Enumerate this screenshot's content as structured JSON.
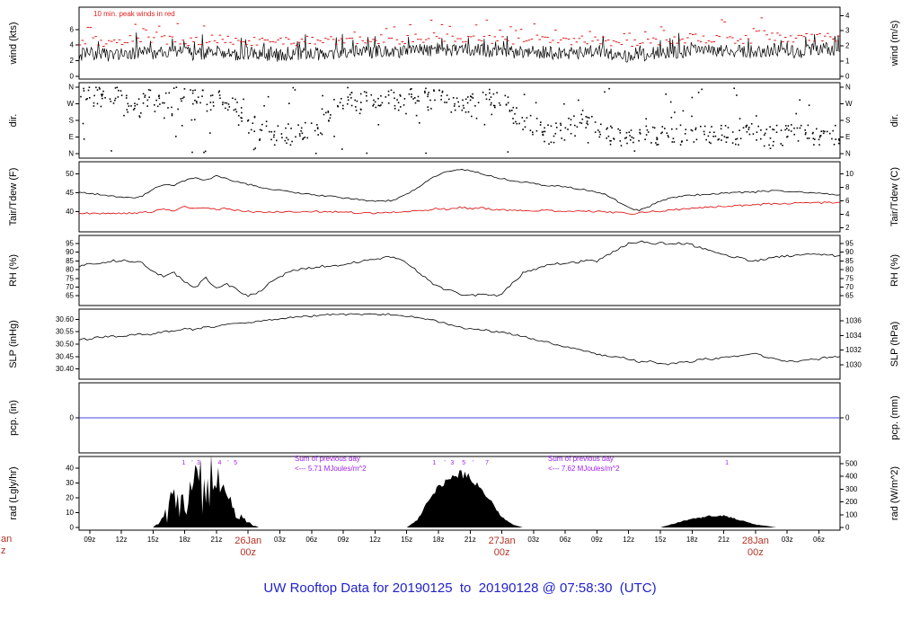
{
  "chart_data": {
    "type": "line",
    "title": "UW Rooftop Data for 20190125  to  20190128 @ 07:58:30  (UTC)",
    "layout": "7 stacked meteogram panels sharing one 72-hour time axis, grid off, ticks outside",
    "colors": {
      "trace_black": "#000000",
      "trace_red": "#dd0000",
      "annotation_red": "#e02020",
      "date_red": "#b23327",
      "purple": "#a020f0",
      "title_blue": "#2222cc",
      "pcp_blue": "#4444dd"
    },
    "x_axis": {
      "hours_total": 72,
      "ticks": [
        {
          "t": 1,
          "l": "09z"
        },
        {
          "t": 4,
          "l": "12z"
        },
        {
          "t": 7,
          "l": "15z"
        },
        {
          "t": 10,
          "l": "18z"
        },
        {
          "t": 13,
          "l": "21z"
        },
        {
          "t": 16,
          "l": ""
        },
        {
          "t": 19,
          "l": "03z"
        },
        {
          "t": 22,
          "l": "06z"
        },
        {
          "t": 25,
          "l": "09z"
        },
        {
          "t": 28,
          "l": "12z"
        },
        {
          "t": 31,
          "l": "15z"
        },
        {
          "t": 34,
          "l": "18z"
        },
        {
          "t": 37,
          "l": "21z"
        },
        {
          "t": 40,
          "l": ""
        },
        {
          "t": 43,
          "l": "03z"
        },
        {
          "t": 46,
          "l": "06z"
        },
        {
          "t": 49,
          "l": "09z"
        },
        {
          "t": 52,
          "l": "12z"
        },
        {
          "t": 55,
          "l": "15z"
        },
        {
          "t": 58,
          "l": "18z"
        },
        {
          "t": 61,
          "l": "21z"
        },
        {
          "t": 64,
          "l": ""
        },
        {
          "t": 67,
          "l": "03z"
        },
        {
          "t": 70,
          "l": "06z"
        }
      ],
      "date_labels": [
        {
          "t": 16,
          "line1": "26Jan",
          "line2": "00z"
        },
        {
          "t": 40,
          "line1": "27Jan",
          "line2": "00z"
        },
        {
          "t": 64,
          "line1": "28Jan",
          "line2": "00z"
        }
      ]
    },
    "panels": [
      {
        "id": "wind",
        "ylabel_left": "wind (kts)",
        "ylabel_right": "wind (m/s)",
        "ylim": [
          0,
          8.5
        ],
        "ticks_left": [
          {
            "v": 0,
            "l": "0"
          },
          {
            "v": 2,
            "l": "2"
          },
          {
            "v": 4,
            "l": "4"
          },
          {
            "v": 6,
            "l": "6"
          }
        ],
        "ticks_right": [
          {
            "v": 0,
            "l": "0"
          },
          {
            "v": 1.94,
            "l": "1"
          },
          {
            "v": 3.89,
            "l": "2"
          },
          {
            "v": 5.83,
            "l": "3"
          },
          {
            "v": 7.78,
            "l": "4"
          }
        ]
      },
      {
        "id": "dir",
        "ylabel_left": "dir.",
        "ylabel_right": "dir.",
        "ylim": [
          0,
          360
        ],
        "ticks_left": [
          {
            "v": 360,
            "l": "N"
          },
          {
            "v": 270,
            "l": "W"
          },
          {
            "v": 180,
            "l": "S"
          },
          {
            "v": 90,
            "l": "E"
          },
          {
            "v": 0,
            "l": "N"
          }
        ],
        "ticks_right": [
          {
            "v": 360,
            "l": "N"
          },
          {
            "v": 270,
            "l": "W"
          },
          {
            "v": 180,
            "l": "S"
          },
          {
            "v": 90,
            "l": "E"
          },
          {
            "v": 0,
            "l": "N"
          }
        ]
      },
      {
        "id": "temp",
        "ylabel_left": "Tair/Tdew (F)",
        "ylabel_right": "Tair/Tdew (C)",
        "ylim": [
          35.3,
          52.5
        ],
        "ticks_left": [
          {
            "v": 50,
            "l": "50"
          },
          {
            "v": 45,
            "l": "45"
          },
          {
            "v": 40,
            "l": "40"
          }
        ],
        "ticks_right": [
          {
            "v": 50.0,
            "l": "10"
          },
          {
            "v": 46.4,
            "l": "8"
          },
          {
            "v": 42.8,
            "l": "6"
          },
          {
            "v": 39.2,
            "l": "4"
          },
          {
            "v": 35.6,
            "l": "2"
          }
        ]
      },
      {
        "id": "rh",
        "ylabel_left": "RH (%)",
        "ylabel_right": "RH (%)",
        "ylim": [
          61,
          98
        ],
        "ticks_left": [
          {
            "v": 95,
            "l": "95"
          },
          {
            "v": 90,
            "l": "90"
          },
          {
            "v": 85,
            "l": "85"
          },
          {
            "v": 80,
            "l": "80"
          },
          {
            "v": 75,
            "l": "75"
          },
          {
            "v": 70,
            "l": "70"
          },
          {
            "v": 65,
            "l": "65"
          }
        ],
        "ticks_right": [
          {
            "v": 95,
            "l": "95"
          },
          {
            "v": 90,
            "l": "90"
          },
          {
            "v": 85,
            "l": "85"
          },
          {
            "v": 80,
            "l": "80"
          },
          {
            "v": 75,
            "l": "75"
          },
          {
            "v": 70,
            "l": "70"
          },
          {
            "v": 65,
            "l": "65"
          }
        ]
      },
      {
        "id": "slp",
        "ylabel_left": "SLP (inHg)",
        "ylabel_right": "SLP (hPa)",
        "ylim": [
          30.37,
          30.63
        ],
        "ticks_left": [
          {
            "v": 30.6,
            "l": "30.60"
          },
          {
            "v": 30.55,
            "l": "30.55"
          },
          {
            "v": 30.5,
            "l": "30.50"
          },
          {
            "v": 30.45,
            "l": "30.45"
          },
          {
            "v": 30.4,
            "l": "30.40"
          }
        ],
        "ticks_right": [
          {
            "v": 30.594,
            "l": "1036"
          },
          {
            "v": 30.535,
            "l": "1034"
          },
          {
            "v": 30.476,
            "l": "1032"
          },
          {
            "v": 30.417,
            "l": "1030"
          }
        ]
      },
      {
        "id": "pcp",
        "ylabel_left": "pcp. (in)",
        "ylabel_right": "pcp. (mm)",
        "ylim": [
          -1,
          1
        ],
        "ticks_left": [
          {
            "v": 0,
            "l": "0"
          }
        ],
        "ticks_right": [
          {
            "v": 0,
            "l": "0"
          }
        ]
      },
      {
        "id": "rad",
        "ylabel_left": "rad (Lgly/hr)",
        "ylabel_right": "rad (W/m^2)",
        "ylim": [
          0,
          46
        ],
        "ticks_left": [
          {
            "v": 40,
            "l": "40"
          },
          {
            "v": 30,
            "l": "30"
          },
          {
            "v": 20,
            "l": "20"
          },
          {
            "v": 10,
            "l": "10"
          },
          {
            "v": 0,
            "l": "0"
          }
        ],
        "ticks_right": [
          {
            "v": 43.0,
            "l": "500"
          },
          {
            "v": 34.4,
            "l": "400"
          },
          {
            "v": 25.8,
            "l": "300"
          },
          {
            "v": 17.2,
            "l": "200"
          },
          {
            "v": 8.6,
            "l": "100"
          },
          {
            "v": 0,
            "l": "0"
          }
        ]
      }
    ],
    "series": {
      "note": "hourly values, t=0 is 08z 25Jan2019, 73 points spanning 72 h",
      "wind_kts_hourly": [
        2.8,
        3.0,
        2.9,
        2.7,
        2.8,
        3.0,
        3.1,
        2.9,
        3.0,
        3.2,
        3.0,
        2.8,
        3.0,
        3.2,
        3.0,
        2.8,
        2.9,
        3.0,
        2.8,
        2.7,
        2.8,
        3.0,
        2.9,
        2.8,
        2.9,
        3.0,
        3.1,
        3.0,
        3.2,
        3.1,
        3.0,
        3.2,
        3.4,
        3.3,
        3.5,
        3.4,
        3.3,
        3.5,
        3.4,
        3.2,
        3.3,
        3.1,
        3.0,
        3.2,
        3.1,
        3.0,
        2.9,
        3.0,
        3.1,
        3.0,
        2.9,
        2.8,
        2.6,
        2.7,
        2.9,
        3.0,
        3.1,
        3.2,
        3.3,
        3.2,
        3.4,
        3.3,
        3.2,
        3.1,
        3.2,
        3.3,
        3.4,
        3.2,
        3.1,
        3.3,
        3.4,
        3.5,
        3.4
      ],
      "wind_dir_deg_hourly": [
        310,
        315,
        300,
        320,
        280,
        250,
        300,
        270,
        220,
        310,
        320,
        300,
        280,
        310,
        250,
        200,
        150,
        120,
        100,
        110,
        100,
        120,
        150,
        200,
        250,
        300,
        280,
        310,
        300,
        290,
        270,
        300,
        310,
        290,
        300,
        280,
        270,
        290,
        300,
        280,
        260,
        200,
        150,
        120,
        100,
        120,
        150,
        180,
        150,
        120,
        100,
        90,
        100,
        110,
        100,
        95,
        100,
        105,
        100,
        95,
        100,
        105,
        100,
        110,
        100,
        95,
        105,
        110,
        120,
        100,
        95,
        100,
        105
      ],
      "tair_f_hourly": [
        45.0,
        44.8,
        44.5,
        44.0,
        43.8,
        43.6,
        44.2,
        46.0,
        47.2,
        46.8,
        48.2,
        49.0,
        48.3,
        49.5,
        48.6,
        47.8,
        47.2,
        46.6,
        46.1,
        45.6,
        45.1,
        44.8,
        44.5,
        44.2,
        44.0,
        43.6,
        43.3,
        43.0,
        42.8,
        42.7,
        43.2,
        44.5,
        46.3,
        48.2,
        49.8,
        50.6,
        51.2,
        50.8,
        50.2,
        49.4,
        48.7,
        48.2,
        47.8,
        47.4,
        47.0,
        46.8,
        46.5,
        46.1,
        45.7,
        45.2,
        44.3,
        42.6,
        40.9,
        40.2,
        41.4,
        42.8,
        43.6,
        44.0,
        44.3,
        44.5,
        44.7,
        44.9,
        45.0,
        45.1,
        45.2,
        45.4,
        45.5,
        45.4,
        45.2,
        45.0,
        44.8,
        44.6,
        44.4
      ],
      "tdew_f_hourly": [
        39.6,
        39.5,
        39.5,
        39.4,
        39.5,
        39.6,
        39.7,
        40.0,
        40.8,
        40.2,
        41.2,
        40.6,
        41.0,
        40.5,
        40.8,
        40.3,
        40.0,
        39.9,
        39.9,
        40.0,
        39.9,
        39.8,
        39.9,
        40.0,
        39.9,
        39.8,
        39.7,
        39.6,
        39.5,
        39.7,
        39.9,
        40.1,
        40.2,
        40.4,
        40.8,
        40.5,
        41.1,
        40.7,
        41.0,
        40.6,
        40.4,
        40.3,
        40.2,
        40.3,
        40.2,
        40.1,
        40.0,
        40.0,
        40.1,
        40.0,
        39.8,
        39.6,
        39.4,
        39.6,
        39.9,
        40.1,
        40.4,
        40.6,
        40.8,
        41.0,
        41.2,
        41.4,
        41.5,
        41.7,
        41.8,
        42.0,
        42.1,
        42.1,
        42.2,
        42.3,
        42.3,
        42.4,
        42.4
      ],
      "rh_pct_hourly": [
        82,
        83,
        84,
        85,
        85,
        85,
        84,
        79,
        76,
        78,
        73,
        70,
        75,
        69,
        72,
        68,
        65,
        67,
        72,
        76,
        79,
        80,
        81,
        82,
        82,
        83,
        84,
        85,
        86,
        87,
        87,
        84,
        79,
        74,
        70,
        68,
        66,
        65,
        66,
        65,
        66,
        72,
        78,
        80,
        82,
        83,
        84,
        84,
        85,
        85,
        88,
        92,
        95,
        96,
        95,
        95,
        95,
        95,
        94,
        92,
        90,
        88,
        87,
        86,
        85,
        86,
        87,
        88,
        88,
        89,
        89,
        88,
        88
      ],
      "slp_inhg_hourly": [
        30.52,
        30.52,
        30.53,
        30.53,
        30.53,
        30.54,
        30.54,
        30.54,
        30.55,
        30.55,
        30.56,
        30.56,
        30.57,
        30.57,
        30.58,
        30.58,
        30.59,
        30.59,
        30.6,
        30.6,
        30.61,
        30.61,
        30.61,
        30.62,
        30.62,
        30.62,
        30.62,
        30.62,
        30.62,
        30.62,
        30.62,
        30.61,
        30.61,
        30.6,
        30.59,
        30.58,
        30.57,
        30.56,
        30.56,
        30.55,
        30.55,
        30.54,
        30.53,
        30.52,
        30.51,
        30.5,
        30.49,
        30.48,
        30.47,
        30.46,
        30.45,
        30.45,
        30.44,
        30.43,
        30.43,
        30.42,
        30.42,
        30.43,
        30.43,
        30.44,
        30.44,
        30.45,
        30.45,
        30.46,
        30.46,
        30.45,
        30.44,
        30.43,
        30.43,
        30.44,
        30.44,
        30.45,
        30.45
      ],
      "pcp_in_hourly": 0,
      "rad_lgly_hourly": [
        0,
        0,
        0,
        0,
        0,
        0,
        0,
        0,
        6,
        26,
        38,
        31,
        41,
        34,
        19,
        9,
        3,
        0,
        0,
        0,
        0,
        0,
        0,
        0,
        0,
        0,
        0,
        0,
        0,
        0,
        0,
        0,
        5,
        17,
        27,
        33,
        36,
        34,
        27,
        17,
        7,
        2,
        0,
        0,
        0,
        0,
        0,
        0,
        0,
        0,
        0,
        0,
        0,
        0,
        0,
        0,
        2,
        4,
        6,
        7,
        8,
        8,
        6,
        4,
        2,
        1,
        0,
        0,
        0,
        0,
        0,
        0,
        0
      ]
    },
    "annotations": {
      "wind_note": "10 min. peak winds in red",
      "sum_notes": [
        {
          "t": 20.3,
          "line1": "Sum of previous day",
          "line2": "<--- 5.71 MJoules/m^2"
        },
        {
          "t": 44.2,
          "line1": "Sum of previous day",
          "line2": "<--- 7.62 MJoules/m^2"
        }
      ],
      "peak_markers": [
        {
          "t": 9.9,
          "l": "1"
        },
        {
          "t": 10.7,
          "l": "'"
        },
        {
          "t": 11.3,
          "l": "3"
        },
        {
          "t": 13.3,
          "l": "4"
        },
        {
          "t": 14.1,
          "l": "'"
        },
        {
          "t": 14.8,
          "l": "5"
        },
        {
          "t": 33.6,
          "l": "1"
        },
        {
          "t": 34.6,
          "l": "'"
        },
        {
          "t": 35.3,
          "l": "3"
        },
        {
          "t": 36.4,
          "l": "5"
        },
        {
          "t": 37.3,
          "l": "'"
        },
        {
          "t": 38.6,
          "l": "7"
        },
        {
          "t": 61.3,
          "l": "1"
        }
      ]
    }
  },
  "footer_cutoff": {
    "lines": [
      "an",
      "z"
    ]
  }
}
